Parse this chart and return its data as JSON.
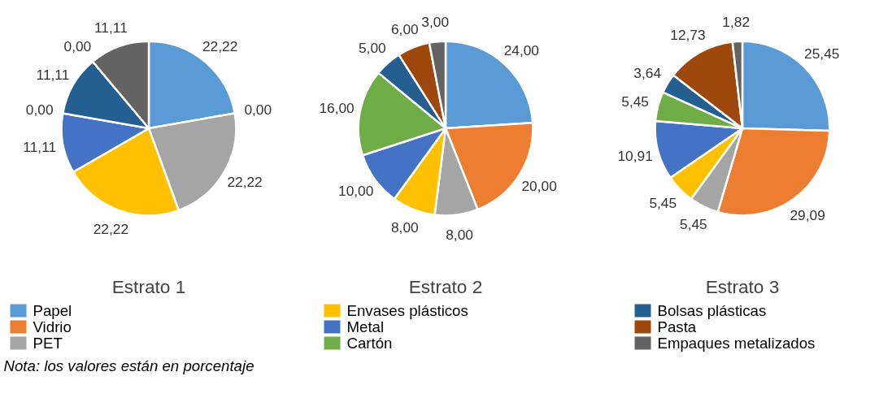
{
  "chart_data": [
    {
      "type": "pie",
      "title": "Estrato 1",
      "legend": "bottom",
      "categories": [
        "Papel",
        "Vidrio",
        "PET",
        "Envases plásticos",
        "Metal",
        "Cartón",
        "Bolsas plásticas",
        "Pasta",
        "Empaques metalizados"
      ],
      "values": [
        22.22,
        0.0,
        22.22,
        22.22,
        11.11,
        0.0,
        11.11,
        0.0,
        11.11
      ],
      "value_labels": [
        "22,22",
        "0,00",
        "22,22",
        "22,22",
        "11,11",
        "0,00",
        "11,11",
        "0,00",
        "11,11"
      ],
      "colors": [
        "#5b9bd5",
        "#ed7d31",
        "#a5a5a5",
        "#ffc000",
        "#4472c4",
        "#70ad47",
        "#255e91",
        "#9e480e",
        "#636363"
      ]
    },
    {
      "type": "pie",
      "title": "Estrato 2",
      "categories": [
        null,
        null,
        null,
        null,
        null,
        null,
        null,
        null,
        null
      ],
      "values": [
        24.0,
        20.0,
        8.0,
        8.0,
        10.0,
        16.0,
        5.0,
        6.0,
        3.0
      ],
      "value_labels": [
        "24,00",
        "20,00",
        "8,00",
        "8,00",
        "10,00",
        "16,00",
        "5,00",
        "6,00",
        "3,00"
      ],
      "colors": [
        "#5b9bd5",
        "#ed7d31",
        "#a5a5a5",
        "#ffc000",
        "#4472c4",
        "#70ad47",
        "#255e91",
        "#9e480e",
        "#636363"
      ]
    },
    {
      "type": "pie",
      "title": "Estrato 3",
      "categories": [
        null,
        null,
        null,
        null,
        null,
        null,
        null,
        null,
        null
      ],
      "values": [
        25.45,
        29.09,
        5.45,
        5.45,
        10.91,
        5.45,
        3.64,
        12.73,
        1.82
      ],
      "value_labels": [
        "25,45",
        "29,09",
        "5,45",
        "5,45",
        "10,91",
        "5,45",
        "3,64",
        "12,73",
        "1,82"
      ],
      "colors": [
        "#5b9bd5",
        "#ed7d31",
        "#a5a5a5",
        "#ffc000",
        "#4472c4",
        "#70ad47",
        "#255e91",
        "#9e480e",
        "#636363"
      ],
      "annotations": [
        "Nota: los valores están en porcentaje"
      ]
    }
  ]
}
